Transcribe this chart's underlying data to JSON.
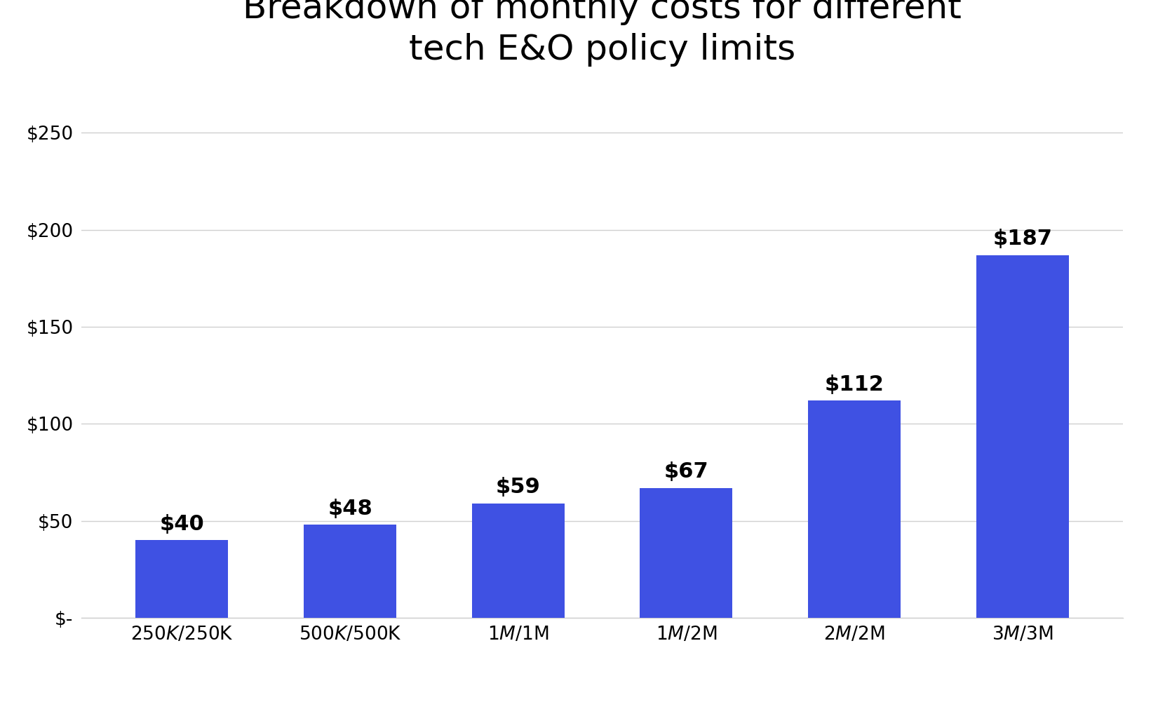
{
  "title": "Breakdown of monthly costs for different\ntech E&O policy limits",
  "categories": [
    "$250K / $250K",
    "$500K / $500K",
    "$1M / $1M",
    "$1M / $2M",
    "$2M / $2M",
    "$3M / $3M"
  ],
  "values": [
    40,
    48,
    59,
    67,
    112,
    187
  ],
  "bar_color": "#3F51E3",
  "ylim": [
    0,
    275
  ],
  "yticks": [
    0,
    50,
    100,
    150,
    200,
    250
  ],
  "ytick_labels": [
    "$-",
    "$50",
    "$100",
    "$150",
    "$200",
    "$250"
  ],
  "title_fontsize": 36,
  "tick_fontsize": 19,
  "annotation_fontsize": 22,
  "background_color": "#ffffff",
  "grid_color": "#d0d0d0",
  "bar_width": 0.55
}
